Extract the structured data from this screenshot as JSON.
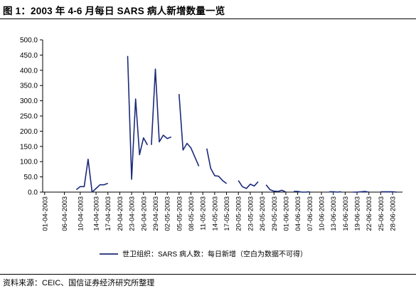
{
  "title": "图 1：2003 年 4-6 月每日 SARS 病人新增数量一览",
  "source": "资料来源：CEIC、国信证券经济研究所整理",
  "chart_data": {
    "type": "line",
    "legend_placement": "bottom",
    "ylim": [
      0,
      500
    ],
    "y_ticks": [
      "0.0",
      "50.0",
      "100.0",
      "150.0",
      "200.0",
      "250.0",
      "300.0",
      "350.0",
      "400.0",
      "450.0",
      "500.0"
    ],
    "x_ticks": [
      "01-04-2003",
      "06-04-2003",
      "10-04-2003",
      "14-04-2003",
      "17-04-2003",
      "20-04-2003",
      "23-04-2003",
      "26-04-2003",
      "29-04-2003",
      "02-05-2003",
      "05-05-2003",
      "08-05-2003",
      "11-05-2003",
      "14-05-2003",
      "17-05-2003",
      "20-05-2003",
      "23-05-2003",
      "26-05-2003",
      "29-05-2003",
      "01-06-2003",
      "04-06-2003",
      "07-06-2003",
      "10-06-2003",
      "13-06-2003",
      "16-06-2003",
      "19-06-2003",
      "22-06-2003",
      "25-06-2003",
      "28-06-2003"
    ],
    "series": [
      {
        "name": "世卫组织：SARS 病人数：每日新增（空白为数据不可得）",
        "color": "#1b2a7a",
        "segments": [
          [
            [
              "09-04-2003",
              8
            ],
            [
              "10-04-2003",
              18
            ],
            [
              "11-04-2003",
              18
            ],
            [
              "12-04-2003",
              108
            ],
            [
              "13-04-2003",
              0
            ],
            [
              "14-04-2003",
              12
            ],
            [
              "15-04-2003",
              24
            ],
            [
              "16-04-2003",
              24
            ],
            [
              "17-04-2003",
              29
            ]
          ],
          [
            [
              "22-04-2003",
              447
            ],
            [
              "23-04-2003",
              42
            ],
            [
              "24-04-2003",
              306
            ],
            [
              "25-04-2003",
              123
            ],
            [
              "26-04-2003",
              178
            ],
            [
              "27-04-2003",
              155
            ]
          ],
          [
            [
              "28-04-2003",
              155
            ],
            [
              "29-04-2003",
              404
            ],
            [
              "30-04-2003",
              165
            ],
            [
              "01-05-2003",
              187
            ],
            [
              "02-05-2003",
              176
            ],
            [
              "03-05-2003",
              181
            ]
          ],
          [
            [
              "05-05-2003",
              322
            ],
            [
              "06-05-2003",
              138
            ],
            [
              "07-05-2003",
              160
            ],
            [
              "08-05-2003",
              145
            ],
            [
              "09-05-2003",
              115
            ],
            [
              "10-05-2003",
              85
            ]
          ],
          [
            [
              "12-05-2003",
              143
            ],
            [
              "13-05-2003",
              78
            ],
            [
              "14-05-2003",
              54
            ],
            [
              "15-05-2003",
              52
            ],
            [
              "16-05-2003",
              38
            ],
            [
              "17-05-2003",
              28
            ]
          ],
          [
            [
              "20-05-2003",
              38
            ],
            [
              "21-05-2003",
              18
            ],
            [
              "22-05-2003",
              12
            ],
            [
              "23-05-2003",
              26
            ],
            [
              "24-05-2003",
              20
            ],
            [
              "25-05-2003",
              34
            ]
          ],
          [
            [
              "27-05-2003",
              24
            ],
            [
              "28-05-2003",
              8
            ],
            [
              "29-05-2003",
              3
            ],
            [
              "30-05-2003",
              2
            ],
            [
              "31-05-2003",
              6
            ],
            [
              "01-06-2003",
              0
            ]
          ],
          [
            [
              "03-06-2003",
              2
            ],
            [
              "04-06-2003",
              2
            ],
            [
              "05-06-2003",
              0
            ],
            [
              "06-06-2003",
              0
            ],
            [
              "07-06-2003",
              1
            ]
          ],
          [
            [
              "12-06-2003",
              1
            ],
            [
              "13-06-2003",
              1
            ],
            [
              "14-06-2003",
              0
            ],
            [
              "15-06-2003",
              1
            ]
          ],
          [
            [
              "18-06-2003",
              0
            ],
            [
              "19-06-2003",
              0
            ],
            [
              "20-06-2003",
              1
            ],
            [
              "21-06-2003",
              2
            ],
            [
              "22-06-2003",
              0
            ]
          ],
          [
            [
              "25-06-2003",
              1
            ],
            [
              "26-06-2003",
              1
            ],
            [
              "27-06-2003",
              1
            ],
            [
              "28-06-2003",
              1
            ],
            [
              "29-06-2003",
              0
            ]
          ]
        ]
      }
    ]
  }
}
